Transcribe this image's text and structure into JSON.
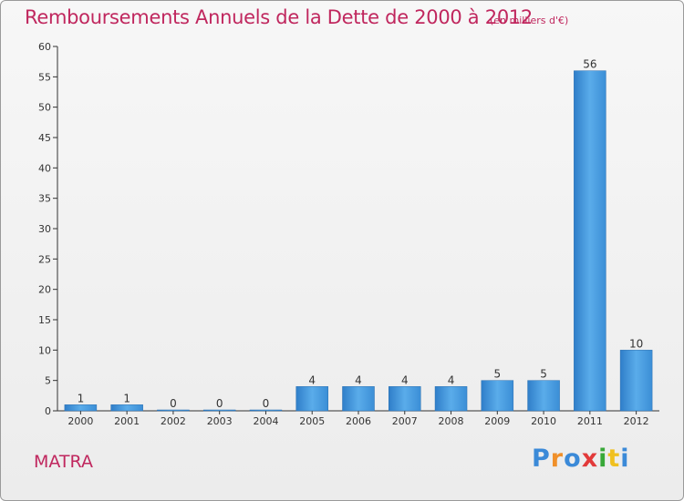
{
  "chart_data": {
    "type": "bar",
    "title": "Remboursements Annuels de la Dette de 2000 à 2012",
    "subtitle": "(en milliers d'€)",
    "categories": [
      "2000",
      "2001",
      "2002",
      "2003",
      "2004",
      "2005",
      "2006",
      "2007",
      "2008",
      "2009",
      "2010",
      "2011",
      "2012"
    ],
    "values": [
      1,
      1,
      0,
      0,
      0,
      4,
      4,
      4,
      4,
      5,
      5,
      56,
      10
    ],
    "ylim": [
      0,
      60
    ],
    "yticks": [
      0,
      5,
      10,
      15,
      20,
      25,
      30,
      35,
      40,
      45,
      50,
      55,
      60
    ],
    "xlabel": "",
    "ylabel": "",
    "grid": false,
    "bar_color": "#3f8fd8"
  },
  "commune": "MATRA",
  "logo": {
    "letters": [
      "P",
      "r",
      "o",
      "x",
      "i",
      "t",
      "i"
    ],
    "colors": [
      "#3b8ad8",
      "#f0902a",
      "#3b8ad8",
      "#e23a3a",
      "#38a838",
      "#f0c020",
      "#3b8ad8"
    ]
  }
}
